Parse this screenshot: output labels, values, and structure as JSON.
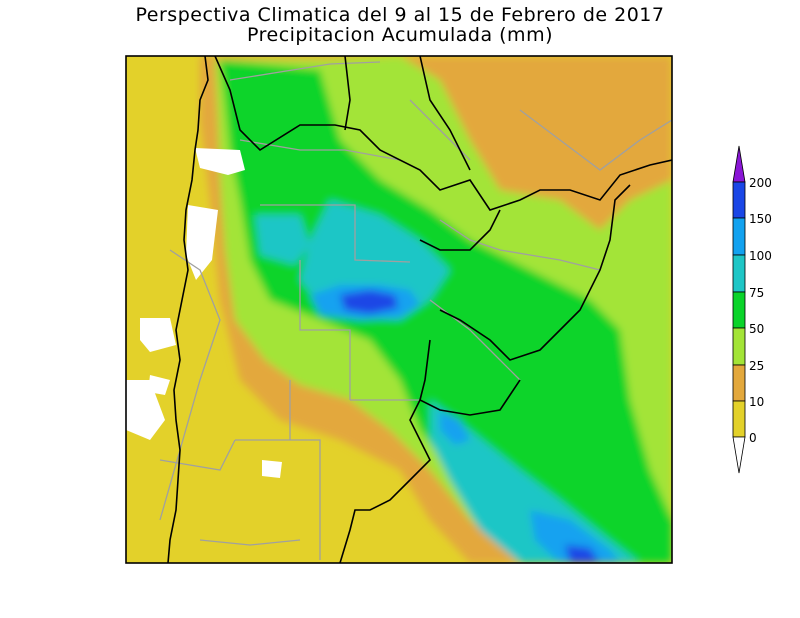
{
  "header": {
    "title": "Perspectiva Climatica del 9 al 15 de Febrero de 2017",
    "subtitle": "Precipitacion Acumulada (mm)"
  },
  "legend": {
    "ticks": [
      "0",
      "10",
      "25",
      "50",
      "75",
      "100",
      "150",
      "200"
    ],
    "bins": [
      {
        "range": "< 0",
        "color": "#ffffff"
      },
      {
        "range": "0-10",
        "color": "#e3d12a"
      },
      {
        "range": "10-25",
        "color": "#e3a83c"
      },
      {
        "range": "25-50",
        "color": "#a3e437"
      },
      {
        "range": "50-75",
        "color": "#0ad42a"
      },
      {
        "range": "75-100",
        "color": "#1ec6c6"
      },
      {
        "range": "100-150",
        "color": "#12a2f0"
      },
      {
        "range": "150-200",
        "color": "#1a46e6"
      },
      {
        "range": "> 200",
        "color": "#8a16d6"
      }
    ]
  },
  "colors": {
    "border": "#000000",
    "province_lines": "#a0a0a0"
  }
}
